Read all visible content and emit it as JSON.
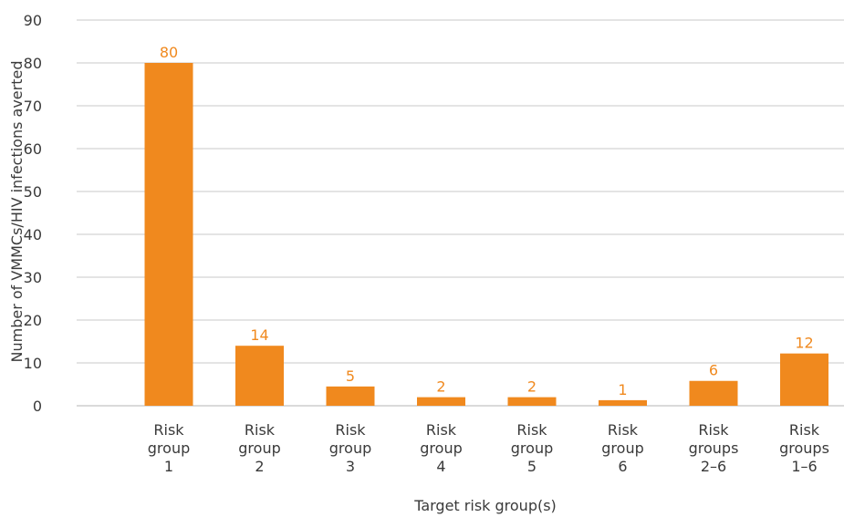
{
  "chart_data": {
    "type": "bar",
    "title": "",
    "xlabel": "Target risk group(s)",
    "ylabel": "Number of VMMCs/HIV infections averted",
    "ylim": [
      0,
      90
    ],
    "yticks": [
      0,
      10,
      20,
      30,
      40,
      50,
      60,
      70,
      80,
      90
    ],
    "grid": true,
    "legend": "none",
    "categories": [
      [
        "Risk",
        "group",
        "1"
      ],
      [
        "Risk",
        "group",
        "2"
      ],
      [
        "Risk",
        "group",
        "3"
      ],
      [
        "Risk",
        "group",
        "4"
      ],
      [
        "Risk",
        "group",
        "5"
      ],
      [
        "Risk",
        "group",
        "6"
      ],
      [
        "Risk",
        "groups",
        "2–6"
      ],
      [
        "Risk",
        "groups",
        "1–6"
      ]
    ],
    "values": [
      80,
      14,
      4.5,
      2,
      2,
      1.3,
      5.8,
      12.2
    ],
    "data_labels": [
      "80",
      "14",
      "5",
      "2",
      "2",
      "1",
      "6",
      "12"
    ],
    "colors": {
      "bar": "#F0891E",
      "label": "#F0891E",
      "grid": "#c8c8c8",
      "text": "#3a3a3a"
    }
  }
}
